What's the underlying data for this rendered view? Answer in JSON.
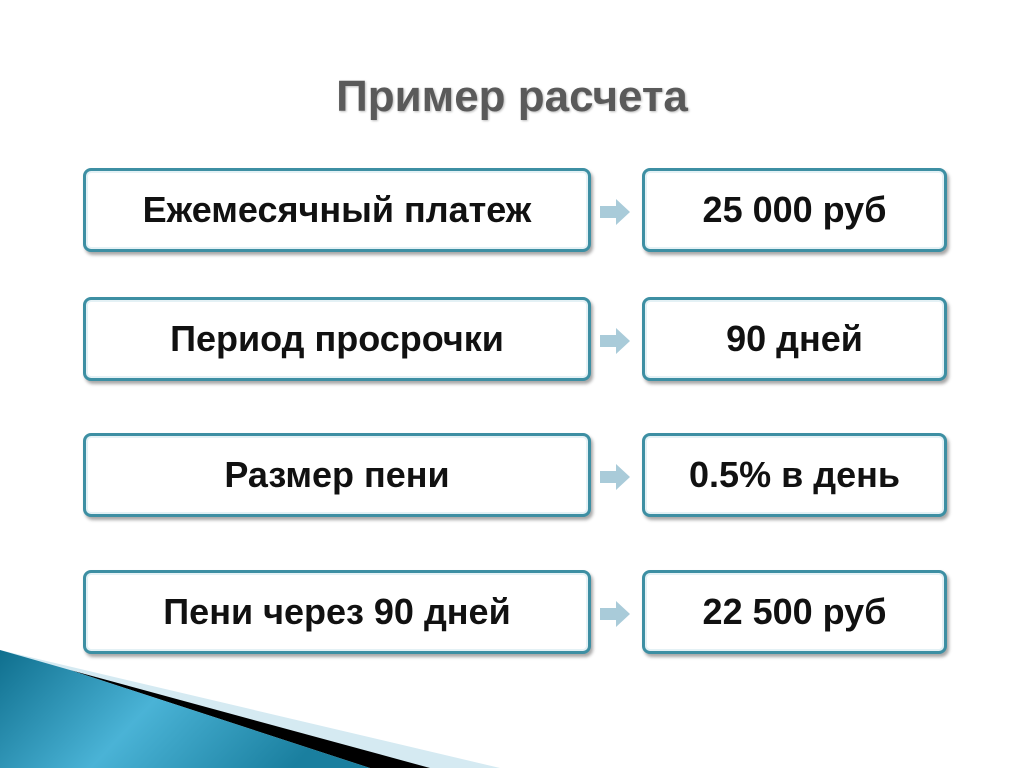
{
  "title": "Пример расчета",
  "rows": [
    {
      "label": "Ежемесячный платеж",
      "value": "25 000 руб"
    },
    {
      "label": "Период просрочки",
      "value": "90 дней"
    },
    {
      "label": "Размер пени",
      "value": "0.5% в день"
    },
    {
      "label": "Пени через 90 дней",
      "value": "22 500 руб"
    }
  ],
  "colors": {
    "border": "#3d8fa3",
    "arrow": "#a9cbd9",
    "decoration": "#1f86a6"
  }
}
